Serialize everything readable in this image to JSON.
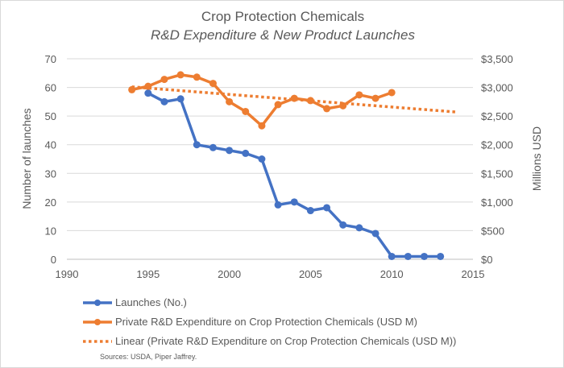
{
  "chart_data": {
    "type": "line",
    "title": "Crop Protection Chemicals",
    "subtitle": "R&D Expenditure & New Product Launches",
    "xlabel": "",
    "ylabel_left": "Number of launches",
    "ylabel_right": "Millions USD",
    "xlim": [
      1990,
      2015
    ],
    "ylim_left": [
      0,
      70
    ],
    "ylim_right": [
      0,
      3500
    ],
    "x_ticks": [
      "1990",
      "1995",
      "2000",
      "2005",
      "2010",
      "2015"
    ],
    "y_left_ticks": [
      "0",
      "10",
      "20",
      "30",
      "40",
      "50",
      "60",
      "70"
    ],
    "y_right_ticks": [
      "$0",
      "$500",
      "$1,000",
      "$1,500",
      "$2,000",
      "$2,500",
      "$3,000",
      "$3,500"
    ],
    "grid": true,
    "legend_position": "bottom",
    "series": [
      {
        "name": "Launches (No.)",
        "axis": "left",
        "color": "#4472c4",
        "x": [
          1995,
          1996,
          1997,
          1998,
          1999,
          2000,
          2001,
          2002,
          2003,
          2004,
          2005,
          2006,
          2007,
          2008,
          2009,
          2010,
          2011,
          2012,
          2013
        ],
        "values": [
          58,
          55,
          56,
          40,
          39,
          38,
          37,
          35,
          19,
          20,
          17,
          18,
          12,
          11,
          9,
          1,
          1,
          1,
          1
        ]
      },
      {
        "name": "Private R&D Expenditure on Crop Protection Chemicals (USD M)",
        "axis": "right",
        "color": "#ed7d31",
        "x": [
          1994,
          1995,
          1996,
          1997,
          1998,
          1999,
          2000,
          2001,
          2002,
          2003,
          2004,
          2005,
          2006,
          2007,
          2008,
          2009,
          2010
        ],
        "values": [
          2960,
          3020,
          3140,
          3220,
          3180,
          3070,
          2750,
          2580,
          2330,
          2700,
          2810,
          2770,
          2630,
          2680,
          2870,
          2810,
          2910
        ]
      }
    ],
    "trendline": {
      "name": "Linear  (Private R&D Expenditure on Crop Protection Chemicals (USD M))",
      "type": "linear",
      "axis": "right",
      "color": "#ed7d31",
      "x": [
        1994,
        2014
      ],
      "values": [
        3010,
        2570
      ]
    },
    "sources": "Sources: USDA, Piper Jaffrey."
  }
}
